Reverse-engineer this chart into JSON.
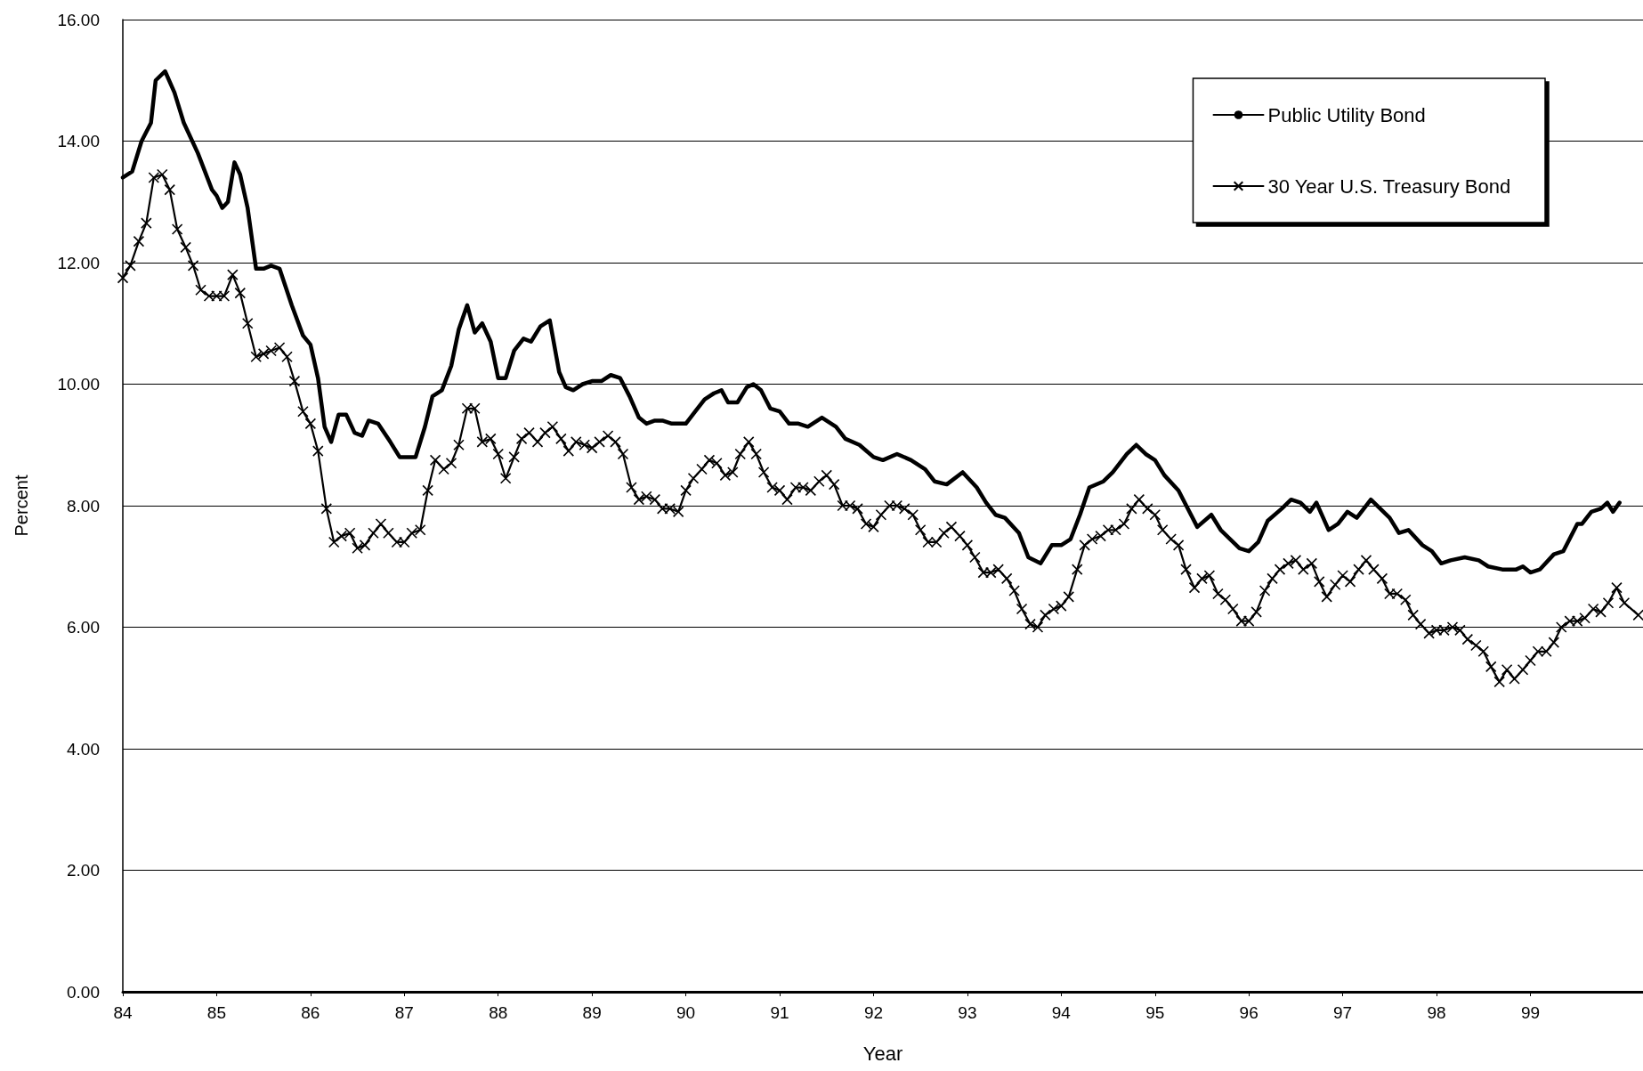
{
  "chart_data": {
    "type": "line",
    "xlabel": "Year",
    "ylabel": "Percent",
    "xlim": [
      84,
      100.2
    ],
    "ylim": [
      0,
      16
    ],
    "xticks": [
      84,
      85,
      86,
      87,
      88,
      89,
      90,
      91,
      92,
      93,
      94,
      95,
      96,
      97,
      98,
      99
    ],
    "yticks": [
      {
        "value": 0,
        "label": "0.00"
      },
      {
        "value": 2,
        "label": "2.00"
      },
      {
        "value": 4,
        "label": "4.00"
      },
      {
        "value": 6,
        "label": "6.00"
      },
      {
        "value": 8,
        "label": "8.00"
      },
      {
        "value": 10,
        "label": "10.00"
      },
      {
        "value": 12,
        "label": "12.00"
      },
      {
        "value": 14,
        "label": "14.00"
      },
      {
        "value": 16,
        "label": "16.00"
      }
    ],
    "grid": "y",
    "legend": "top right",
    "line_style": "solid",
    "series": [
      {
        "name": "Public Utility Bond",
        "color": "#000000",
        "marker": "none",
        "x": [
          84,
          84.1,
          84.2,
          84.3,
          84.35,
          84.45,
          84.55,
          84.65,
          84.8,
          84.95,
          85,
          85.06,
          85.12,
          85.19,
          85.25,
          85.33,
          85.42,
          85.5,
          85.58,
          85.67,
          85.8,
          85.92,
          86,
          86.08,
          86.15,
          86.22,
          86.3,
          86.38,
          86.47,
          86.55,
          86.62,
          86.72,
          86.85,
          86.95,
          87.05,
          87.12,
          87.22,
          87.3,
          87.4,
          87.5,
          87.58,
          87.67,
          87.75,
          87.83,
          87.92,
          88,
          88.08,
          88.17,
          88.27,
          88.35,
          88.45,
          88.55,
          88.65,
          88.72,
          88.8,
          88.9,
          89,
          89.1,
          89.2,
          89.3,
          89.4,
          89.5,
          89.58,
          89.67,
          89.75,
          89.85,
          90,
          90.1,
          90.2,
          90.3,
          90.38,
          90.45,
          90.55,
          90.65,
          90.72,
          90.8,
          90.9,
          91,
          91.1,
          91.2,
          91.3,
          91.45,
          91.6,
          91.7,
          91.85,
          92,
          92.1,
          92.25,
          92.4,
          92.55,
          92.65,
          92.78,
          92.95,
          93.1,
          93.2,
          93.3,
          93.4,
          93.55,
          93.65,
          93.78,
          93.9,
          94,
          94.1,
          94.2,
          94.3,
          94.45,
          94.55,
          94.7,
          94.8,
          94.9,
          95,
          95.1,
          95.25,
          95.35,
          95.45,
          95.6,
          95.7,
          95.8,
          95.9,
          96,
          96.1,
          96.2,
          96.35,
          96.45,
          96.55,
          96.65,
          96.72,
          96.85,
          96.95,
          97.05,
          97.15,
          97.3,
          97.4,
          97.5,
          97.6,
          97.7,
          97.85,
          97.95,
          98.05,
          98.15,
          98.3,
          98.45,
          98.55,
          98.7,
          98.85,
          98.92,
          99,
          99.1,
          99.25,
          99.35,
          99.5,
          99.55,
          99.65,
          99.75,
          99.82,
          99.88,
          99.95
        ],
        "values": [
          13.4,
          13.5,
          14,
          14.3,
          15,
          15.15,
          14.8,
          14.3,
          13.8,
          13.2,
          13.1,
          12.9,
          13,
          13.65,
          13.45,
          12.9,
          11.9,
          11.9,
          11.95,
          11.9,
          11.3,
          10.8,
          10.65,
          10.1,
          9.3,
          9.05,
          9.5,
          9.5,
          9.2,
          9.15,
          9.4,
          9.35,
          9.05,
          8.8,
          8.8,
          8.8,
          9.3,
          9.8,
          9.9,
          10.3,
          10.9,
          11.3,
          10.85,
          11,
          10.7,
          10.1,
          10.1,
          10.55,
          10.75,
          10.7,
          10.95,
          11.05,
          10.2,
          9.95,
          9.9,
          10,
          10.05,
          10.05,
          10.15,
          10.1,
          9.8,
          9.45,
          9.35,
          9.4,
          9.4,
          9.35,
          9.35,
          9.55,
          9.75,
          9.85,
          9.9,
          9.7,
          9.7,
          9.95,
          10,
          9.9,
          9.6,
          9.55,
          9.35,
          9.35,
          9.3,
          9.45,
          9.3,
          9.1,
          9,
          8.8,
          8.75,
          8.85,
          8.75,
          8.6,
          8.4,
          8.35,
          8.55,
          8.3,
          8.05,
          7.85,
          7.8,
          7.55,
          7.15,
          7.05,
          7.35,
          7.35,
          7.45,
          7.85,
          8.3,
          8.4,
          8.55,
          8.85,
          9,
          8.85,
          8.75,
          8.5,
          8.25,
          7.95,
          7.65,
          7.85,
          7.6,
          7.45,
          7.3,
          7.25,
          7.4,
          7.75,
          7.95,
          8.1,
          8.05,
          7.9,
          8.05,
          7.6,
          7.7,
          7.9,
          7.8,
          8.1,
          7.95,
          7.8,
          7.55,
          7.6,
          7.35,
          7.25,
          7.05,
          7.1,
          7.15,
          7.1,
          7,
          6.95,
          6.95,
          7,
          6.9,
          6.95,
          7.2,
          7.25,
          7.7,
          7.7,
          7.9,
          7.95,
          8.05,
          7.9,
          8.05
        ]
      },
      {
        "name": "30 Year U.S. Treasury Bond",
        "color": "#000000",
        "marker": "cross",
        "x": [
          84,
          84.08,
          84.17,
          84.25,
          84.33,
          84.42,
          84.5,
          84.58,
          84.67,
          84.75,
          84.83,
          84.92,
          85,
          85.08,
          85.17,
          85.25,
          85.33,
          85.42,
          85.5,
          85.58,
          85.67,
          85.75,
          85.83,
          85.92,
          86,
          86.08,
          86.17,
          86.25,
          86.33,
          86.42,
          86.5,
          86.58,
          86.67,
          86.75,
          86.83,
          86.92,
          87,
          87.08,
          87.17,
          87.25,
          87.33,
          87.42,
          87.5,
          87.58,
          87.67,
          87.75,
          87.83,
          87.92,
          88,
          88.08,
          88.17,
          88.25,
          88.33,
          88.42,
          88.5,
          88.58,
          88.67,
          88.75,
          88.83,
          88.92,
          89,
          89.08,
          89.17,
          89.25,
          89.33,
          89.42,
          89.5,
          89.58,
          89.67,
          89.75,
          89.83,
          89.92,
          90,
          90.08,
          90.17,
          90.25,
          90.33,
          90.42,
          90.5,
          90.58,
          90.67,
          90.75,
          90.83,
          90.92,
          91,
          91.08,
          91.17,
          91.25,
          91.33,
          91.42,
          91.5,
          91.58,
          91.67,
          91.75,
          91.83,
          91.92,
          92,
          92.08,
          92.17,
          92.25,
          92.33,
          92.42,
          92.5,
          92.58,
          92.67,
          92.75,
          92.83,
          92.92,
          93,
          93.08,
          93.17,
          93.25,
          93.33,
          93.42,
          93.5,
          93.58,
          93.67,
          93.75,
          93.83,
          93.92,
          94,
          94.08,
          94.17,
          94.25,
          94.33,
          94.42,
          94.5,
          94.58,
          94.67,
          94.75,
          94.83,
          94.92,
          95,
          95.08,
          95.17,
          95.25,
          95.33,
          95.42,
          95.5,
          95.58,
          95.67,
          95.75,
          95.83,
          95.92,
          96,
          96.08,
          96.17,
          96.25,
          96.33,
          96.42,
          96.5,
          96.58,
          96.67,
          96.75,
          96.83,
          96.92,
          97,
          97.08,
          97.17,
          97.25,
          97.33,
          97.42,
          97.5,
          97.58,
          97.67,
          97.75,
          97.83,
          97.92,
          98,
          98.08,
          98.17,
          98.25,
          98.33,
          98.42,
          98.5,
          98.58,
          98.67,
          98.75,
          98.83,
          98.92,
          99,
          99.08,
          99.17,
          99.25,
          99.33,
          99.42,
          99.5,
          99.58,
          99.67,
          99.75,
          99.83,
          99.92,
          100,
          100.15
        ],
        "values": [
          11.75,
          11.95,
          12.35,
          12.65,
          13.4,
          13.45,
          13.2,
          12.55,
          12.25,
          11.95,
          11.55,
          11.45,
          11.45,
          11.45,
          11.8,
          11.5,
          11,
          10.45,
          10.5,
          10.55,
          10.6,
          10.45,
          10.05,
          9.55,
          9.35,
          8.9,
          7.95,
          7.4,
          7.5,
          7.55,
          7.3,
          7.35,
          7.55,
          7.7,
          7.55,
          7.4,
          7.4,
          7.55,
          7.6,
          8.25,
          8.75,
          8.6,
          8.7,
          9,
          9.6,
          9.6,
          9.05,
          9.1,
          8.85,
          8.45,
          8.8,
          9.1,
          9.2,
          9.05,
          9.2,
          9.3,
          9.1,
          8.9,
          9.05,
          9,
          8.95,
          9.05,
          9.15,
          9.05,
          8.85,
          8.3,
          8.1,
          8.15,
          8.1,
          7.95,
          7.95,
          7.9,
          8.25,
          8.45,
          8.6,
          8.75,
          8.7,
          8.5,
          8.55,
          8.85,
          9.05,
          8.85,
          8.55,
          8.3,
          8.25,
          8.1,
          8.3,
          8.3,
          8.25,
          8.4,
          8.5,
          8.35,
          8,
          8,
          7.95,
          7.7,
          7.65,
          7.85,
          8,
          8,
          7.95,
          7.85,
          7.6,
          7.4,
          7.4,
          7.55,
          7.65,
          7.5,
          7.35,
          7.15,
          6.9,
          6.9,
          6.95,
          6.8,
          6.6,
          6.3,
          6.05,
          6,
          6.2,
          6.3,
          6.35,
          6.5,
          6.95,
          7.35,
          7.45,
          7.5,
          7.6,
          7.6,
          7.7,
          7.95,
          8.1,
          7.95,
          7.85,
          7.6,
          7.45,
          7.35,
          6.95,
          6.65,
          6.8,
          6.85,
          6.55,
          6.45,
          6.3,
          6.1,
          6.1,
          6.25,
          6.6,
          6.8,
          6.95,
          7.05,
          7.1,
          6.95,
          7.05,
          6.75,
          6.5,
          6.7,
          6.85,
          6.75,
          6.95,
          7.1,
          6.95,
          6.8,
          6.55,
          6.55,
          6.45,
          6.2,
          6.05,
          5.9,
          5.95,
          5.95,
          6,
          5.95,
          5.8,
          5.7,
          5.6,
          5.35,
          5.1,
          5.3,
          5.15,
          5.3,
          5.45,
          5.6,
          5.6,
          5.75,
          6,
          6.1,
          6.1,
          6.15,
          6.3,
          6.25,
          6.4,
          6.65,
          6.4,
          6.2
        ]
      }
    ]
  }
}
